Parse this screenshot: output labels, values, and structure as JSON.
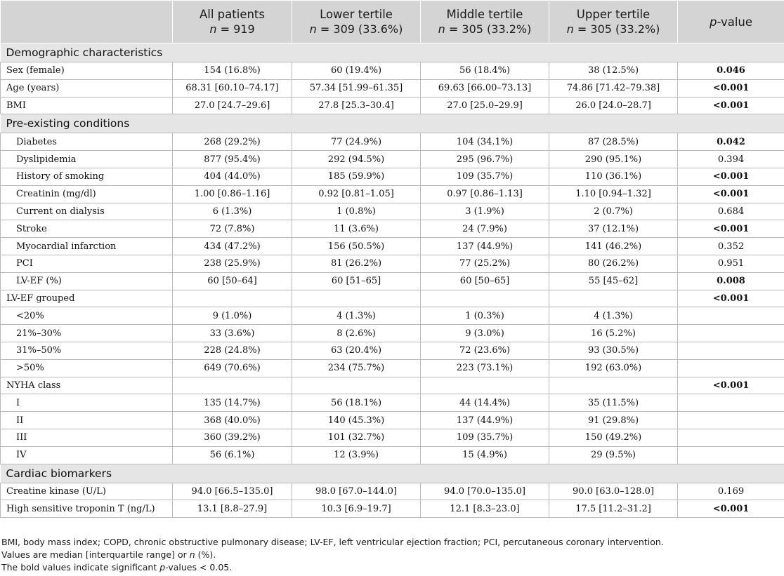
{
  "header": {
    "col0": "",
    "col1": "All patients",
    "col1_sub_pre": "n",
    "col1_sub": " = 919",
    "col2": "Lower tertile",
    "col2_sub_pre": "n",
    "col2_sub": " = 309 (33.6%)",
    "col3": "Middle tertile",
    "col3_sub_pre": "n",
    "col3_sub": " = 305 (33.2%)",
    "col4": "Upper tertile",
    "col4_sub_pre": "n",
    "col4_sub": " = 305 (33.2%)",
    "col5_pre": "p",
    "col5": "-value"
  },
  "sections": {
    "demo": "Demographic characteristics",
    "pre": "Pre-existing conditions",
    "bio": "Cardiac biomarkers"
  },
  "rows": [
    {
      "label": "Sex (female)",
      "all": "154 (16.8%)",
      "low": "60 (19.4%)",
      "mid": "56 (18.4%)",
      "up": "38 (12.5%)",
      "p": "0.046"
    },
    {
      "label": "Age (years)",
      "all": "68.31 [60.10–74.17]",
      "low": "57.34 [51.99–61.35]",
      "mid": "69.63 [66.00–73.13]",
      "up": "74.86 [71.42–79.38]",
      "p": "<0.001"
    },
    {
      "label": "BMI",
      "all": "27.0 [24.7–29.6]",
      "low": "27.8 [25.3–30.4]",
      "mid": "27.0 [25.0–29.9]",
      "up": "26.0 [24.0–28.7]",
      "p": "<0.001"
    },
    {
      "label": "Diabetes",
      "all": "268 (29.2%)",
      "low": "77 (24.9%)",
      "mid": "104 (34.1%)",
      "up": "87 (28.5%)",
      "p": "0.042"
    },
    {
      "label": "Dyslipidemia",
      "all": "877 (95.4%)",
      "low": "292 (94.5%)",
      "mid": "295 (96.7%)",
      "up": "290 (95.1%)",
      "p": "0.394"
    },
    {
      "label": "History of smoking",
      "all": "404 (44.0%)",
      "low": "185 (59.9%)",
      "mid": "109 (35.7%)",
      "up": "110 (36.1%)",
      "p": "<0.001"
    },
    {
      "label": "Creatinin (mg/dl)",
      "all": "1.00 [0.86–1.16]",
      "low": "0.92 [0.81–1.05]",
      "mid": "0.97 [0.86–1.13]",
      "up": "1.10 [0.94–1.32]",
      "p": "<0.001"
    },
    {
      "label": "Current on dialysis",
      "all": "6 (1.3%)",
      "low": "1 (0.8%)",
      "mid": "3 (1.9%)",
      "up": "2 (0.7%)",
      "p": "0.684"
    },
    {
      "label": "Stroke",
      "all": "72 (7.8%)",
      "low": "11 (3.6%)",
      "mid": "24 (7.9%)",
      "up": "37 (12.1%)",
      "p": "<0.001"
    },
    {
      "label": "Myocardial infarction",
      "all": "434 (47.2%)",
      "low": "156 (50.5%)",
      "mid": "137 (44.9%)",
      "up": "141 (46.2%)",
      "p": "0.352"
    },
    {
      "label": "PCI",
      "all": "238 (25.9%)",
      "low": "81 (26.2%)",
      "mid": "77 (25.2%)",
      "up": "80 (26.2%)",
      "p": "0.951"
    },
    {
      "label": "LV-EF (%)",
      "all": "60 [50–64]",
      "low": "60 [51–65]",
      "mid": "60 [50–65]",
      "up": "55 [45–62]",
      "p": "0.008"
    },
    {
      "label": "LV-EF grouped",
      "p": "<0.001"
    },
    {
      "label": "<20%",
      "all": "9 (1.0%)",
      "low": "4 (1.3%)",
      "mid": "1 (0.3%)",
      "up": "4 (1.3%)"
    },
    {
      "label": "21%–30%",
      "all": "33 (3.6%)",
      "low": "8 (2.6%)",
      "mid": "9 (3.0%)",
      "up": "16 (5.2%)"
    },
    {
      "label": "31%–50%",
      "all": "228 (24.8%)",
      "low": "63 (20.4%)",
      "mid": "72 (23.6%)",
      "up": "93 (30.5%)"
    },
    {
      "label": ">50%",
      "all": "649 (70.6%)",
      "low": "234 (75.7%)",
      "mid": "223 (73.1%)",
      "up": "192 (63.0%)"
    },
    {
      "label": "NYHA class",
      "p": "<0.001"
    },
    {
      "label": "I",
      "all": "135 (14.7%)",
      "low": "56 (18.1%)",
      "mid": "44 (14.4%)",
      "up": "35 (11.5%)"
    },
    {
      "label": "II",
      "all": "368 (40.0%)",
      "low": "140 (45.3%)",
      "mid": "137 (44.9%)",
      "up": "91 (29.8%)"
    },
    {
      "label": "III",
      "all": "360 (39.2%)",
      "low": "101 (32.7%)",
      "mid": "109 (35.7%)",
      "up": "150 (49.2%)"
    },
    {
      "label": "IV",
      "all": "56 (6.1%)",
      "low": "12 (3.9%)",
      "mid": "15 (4.9%)",
      "up": "29 (9.5%)"
    },
    {
      "label": "Creatine kinase (U/L)",
      "all": "94.0 [66.5–135.0]",
      "low": "98.0 [67.0–144.0]",
      "mid": "94.0 [70.0–135.0]",
      "up": "90.0 [63.0–128.0]",
      "p": "0.169"
    },
    {
      "label": "High sensitive troponin T (ng/L)",
      "all": "13.1 [8.8–27.9]",
      "low": "10.3 [6.9–19.7]",
      "mid": "12.1 [8.3–23.0]",
      "up": "17.5 [11.2–31.2]",
      "p": "<0.001"
    }
  ],
  "footnotes": {
    "abbrev": "BMI, body mass index; COPD, chronic obstructive pulmonary disease; LV-EF, left ventricular ejection fraction; PCI, percutaneous coronary intervention.",
    "values_pre": "Values are median [interquartile range] or ",
    "values_n": "n",
    "values_post": " (%).",
    "bold_pre": "The bold values indicate significant ",
    "bold_p": "p",
    "bold_post": "-values < 0.05."
  }
}
